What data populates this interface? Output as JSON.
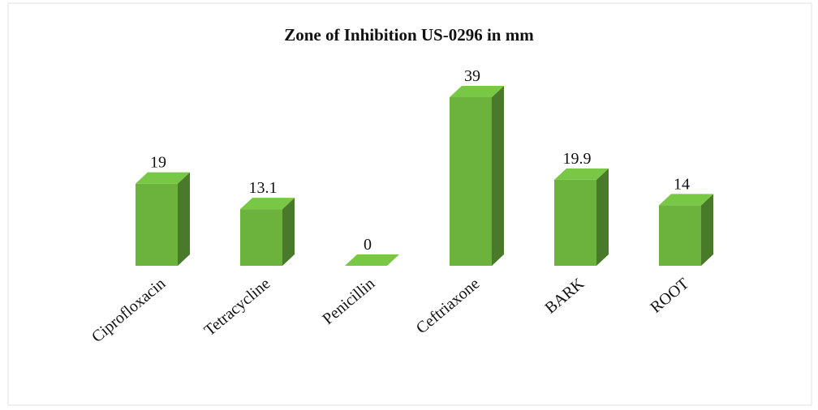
{
  "chart_data": {
    "type": "bar3d",
    "title": "Zone of Inhibition US-0296 in mm",
    "categories": [
      "Ciprofloxacin",
      "Tetracycline",
      "Penicillin",
      "Ceftriaxone",
      "BARK",
      "ROOT"
    ],
    "values": [
      19,
      13.1,
      0,
      39,
      19.9,
      14
    ],
    "color": "#6cb33e"
  }
}
